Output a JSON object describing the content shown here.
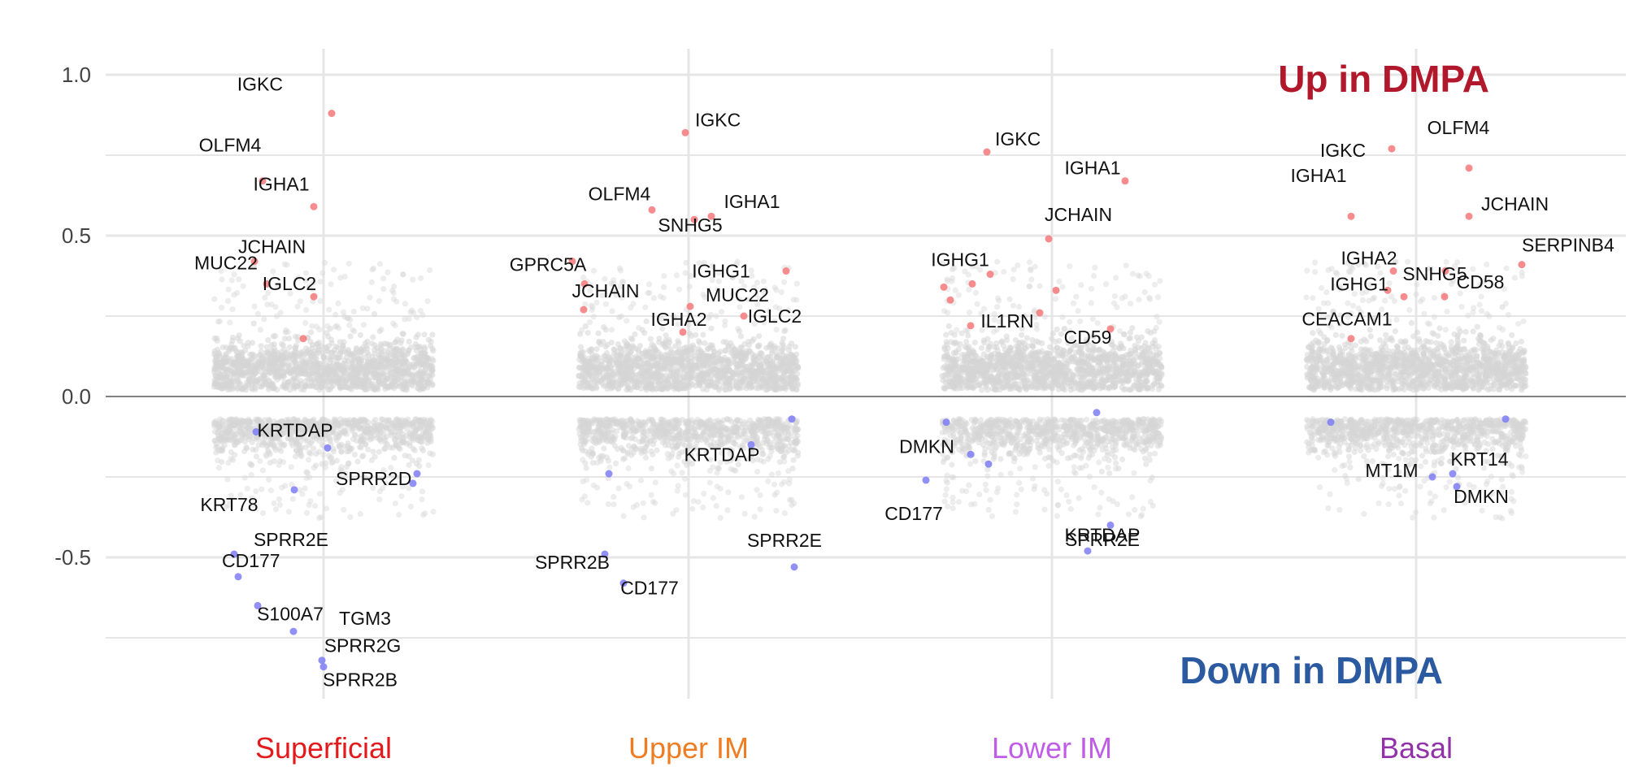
{
  "chart_data": {
    "type": "scatter",
    "title": "",
    "xlabel": "",
    "ylabel": "",
    "ylim": [
      -0.95,
      1.1
    ],
    "yticks": [
      1.0,
      0.5,
      0.0,
      -0.5
    ],
    "ytick_labels": [
      "1.0",
      "0.5",
      "0.0",
      "-0.5"
    ],
    "grid": true,
    "zero_line": true,
    "background_band": [
      -0.3,
      0.45
    ],
    "annotations": [
      {
        "text": "Up in DMPA",
        "color": "#b2182b",
        "position": "top-right"
      },
      {
        "text": "Down in DMPA",
        "color": "#2c5aa0",
        "position": "bottom-right"
      }
    ],
    "categories": [
      {
        "name": "Superficial",
        "color": "#e31a1c",
        "genes": [
          {
            "label": "IGKC",
            "y": 0.88,
            "dir": "up"
          },
          {
            "label": "OLFM4",
            "y": 0.67,
            "dir": "up"
          },
          {
            "label": "IGHA1",
            "y": 0.59,
            "dir": "up"
          },
          {
            "label": "JCHAIN",
            "y": 0.42,
            "dir": "up"
          },
          {
            "label": "MUC22",
            "y": 0.35,
            "dir": "up"
          },
          {
            "label": "IGLC2",
            "y": 0.31,
            "dir": "up"
          },
          {
            "label": "",
            "y": 0.18,
            "dir": "up"
          },
          {
            "label": "",
            "y": -0.11,
            "dir": "down"
          },
          {
            "label": "KRTDAP",
            "y": -0.16,
            "dir": "down"
          },
          {
            "label": "SPRR2D",
            "y": -0.24,
            "dir": "down"
          },
          {
            "label": "KRT78",
            "y": -0.29,
            "dir": "down"
          },
          {
            "label": "",
            "y": -0.27,
            "dir": "down"
          },
          {
            "label": "SPRR2E",
            "y": -0.49,
            "dir": "down"
          },
          {
            "label": "CD177",
            "y": -0.56,
            "dir": "down"
          },
          {
            "label": "S100A7",
            "y": -0.65,
            "dir": "down"
          },
          {
            "label": "TGM3",
            "y": -0.73,
            "dir": "down"
          },
          {
            "label": "SPRR2G",
            "y": -0.82,
            "dir": "down"
          },
          {
            "label": "SPRR2B",
            "y": -0.84,
            "dir": "down"
          }
        ]
      },
      {
        "name": "Upper IM",
        "color": "#f07c22",
        "genes": [
          {
            "label": "IGKC",
            "y": 0.82,
            "dir": "up"
          },
          {
            "label": "OLFM4",
            "y": 0.58,
            "dir": "up"
          },
          {
            "label": "IGHA1",
            "y": 0.56,
            "dir": "up"
          },
          {
            "label": "SNHG5",
            "y": 0.55,
            "dir": "up"
          },
          {
            "label": "GPRC5A",
            "y": 0.42,
            "dir": "up"
          },
          {
            "label": "IGHG1",
            "y": 0.39,
            "dir": "up"
          },
          {
            "label": "",
            "y": 0.35,
            "dir": "up"
          },
          {
            "label": "JCHAIN",
            "y": 0.27,
            "dir": "up"
          },
          {
            "label": "MUC22",
            "y": 0.28,
            "dir": "up"
          },
          {
            "label": "IGHA2",
            "y": 0.2,
            "dir": "up"
          },
          {
            "label": "IGLC2",
            "y": 0.25,
            "dir": "up"
          },
          {
            "label": "KRTDAP",
            "y": -0.15,
            "dir": "down"
          },
          {
            "label": "",
            "y": -0.07,
            "dir": "down"
          },
          {
            "label": "",
            "y": -0.24,
            "dir": "down"
          },
          {
            "label": "SPRR2E",
            "y": -0.53,
            "dir": "down"
          },
          {
            "label": "SPRR2B",
            "y": -0.49,
            "dir": "down"
          },
          {
            "label": "CD177",
            "y": -0.58,
            "dir": "down"
          }
        ]
      },
      {
        "name": "Lower IM",
        "color": "#c05ce6",
        "genes": [
          {
            "label": "IGKC",
            "y": 0.76,
            "dir": "up"
          },
          {
            "label": "IGHA1",
            "y": 0.67,
            "dir": "up"
          },
          {
            "label": "JCHAIN",
            "y": 0.49,
            "dir": "up"
          },
          {
            "label": "IGHG1",
            "y": 0.38,
            "dir": "up"
          },
          {
            "label": "",
            "y": 0.34,
            "dir": "up"
          },
          {
            "label": "",
            "y": 0.3,
            "dir": "up"
          },
          {
            "label": "",
            "y": 0.35,
            "dir": "up"
          },
          {
            "label": "",
            "y": 0.33,
            "dir": "up"
          },
          {
            "label": "IL1RN",
            "y": 0.26,
            "dir": "up"
          },
          {
            "label": "",
            "y": 0.22,
            "dir": "up"
          },
          {
            "label": "CD59",
            "y": 0.21,
            "dir": "up"
          },
          {
            "label": "",
            "y": -0.05,
            "dir": "down"
          },
          {
            "label": "",
            "y": -0.08,
            "dir": "down"
          },
          {
            "label": "DMKN",
            "y": -0.18,
            "dir": "down"
          },
          {
            "label": "",
            "y": -0.21,
            "dir": "down"
          },
          {
            "label": "CD177",
            "y": -0.26,
            "dir": "down"
          },
          {
            "label": "KRTDAP",
            "y": -0.4,
            "dir": "down"
          },
          {
            "label": "SPRR2E",
            "y": -0.48,
            "dir": "down"
          }
        ]
      },
      {
        "name": "Basal",
        "color": "#9232a8",
        "genes": [
          {
            "label": "IGKC",
            "y": 0.77,
            "dir": "up"
          },
          {
            "label": "OLFM4",
            "y": 0.71,
            "dir": "up"
          },
          {
            "label": "IGHA1",
            "y": 0.56,
            "dir": "up"
          },
          {
            "label": "JCHAIN",
            "y": 0.56,
            "dir": "up"
          },
          {
            "label": "SERPINB4",
            "y": 0.41,
            "dir": "up"
          },
          {
            "label": "IGHA2",
            "y": 0.39,
            "dir": "up"
          },
          {
            "label": "IGHG1",
            "y": 0.33,
            "dir": "up"
          },
          {
            "label": "CD58",
            "y": 0.31,
            "dir": "up"
          },
          {
            "label": "",
            "y": 0.39,
            "dir": "up"
          },
          {
            "label": "SNHG5",
            "y": 0.31,
            "dir": "up"
          },
          {
            "label": "CEACAM1",
            "y": 0.18,
            "dir": "up"
          },
          {
            "label": "",
            "y": -0.08,
            "dir": "down"
          },
          {
            "label": "",
            "y": -0.07,
            "dir": "down"
          },
          {
            "label": "KRT14",
            "y": -0.24,
            "dir": "down"
          },
          {
            "label": "MT1M",
            "y": -0.25,
            "dir": "down"
          },
          {
            "label": "DMKN",
            "y": -0.28,
            "dir": "down"
          }
        ]
      }
    ]
  }
}
